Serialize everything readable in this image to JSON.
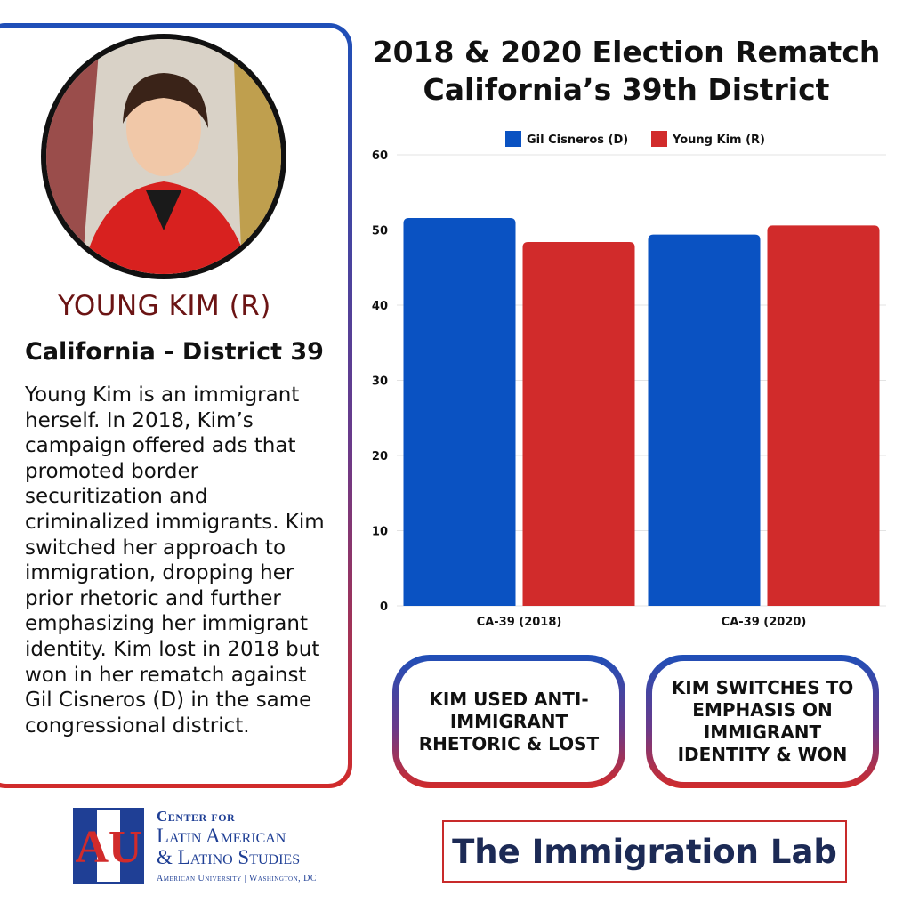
{
  "profile": {
    "name": "YOUNG KIM (R)",
    "district": "California - District 39",
    "description": "Young Kim is an immigrant herself. In 2018, Kim’s campaign offered ads that promoted border securitization and criminalized immigrants. Kim switched her approach to immigration, dropping her prior rhetoric and further emphasizing her immigrant identity. Kim lost in 2018 but won in her rematch against Gil Cisneros (D) in the same congressional district."
  },
  "chart_data": {
    "type": "bar",
    "title": "2018 & 2020 Election Rematch",
    "subtitle": "California’s 39th District",
    "categories": [
      "CA-39 (2018)",
      "CA-39 (2020)"
    ],
    "series": [
      {
        "name": "Gil Cisneros (D)",
        "values": [
          51.6,
          49.4
        ],
        "color": "#0a52c2"
      },
      {
        "name": "Young Kim (R)",
        "values": [
          48.4,
          50.6
        ],
        "color": "#d12b2b"
      }
    ],
    "ylim": [
      0,
      60
    ],
    "yticks": [
      0,
      10,
      20,
      30,
      40,
      50,
      60
    ],
    "xlabel": "",
    "ylabel": "",
    "legend_position": "top",
    "grid": true
  },
  "callouts": {
    "left": "KIM USED ANTI-IMMIGRANT RHETORIC & LOST",
    "right": "KIM SWITCHES TO EMPHASIS ON IMMIGRANT IDENTITY & WON"
  },
  "logo": {
    "line1": "Center for",
    "line2": "Latin American",
    "line3": "& Latino Studies",
    "line4": "American University | Washington, DC",
    "mark": "AU"
  },
  "brand": {
    "name": "The Immigration Lab"
  },
  "colors": {
    "democrat": "#0a52c2",
    "republican": "#d12b2b",
    "name_text": "#6b1414",
    "logo_blue": "#1f3f95"
  }
}
